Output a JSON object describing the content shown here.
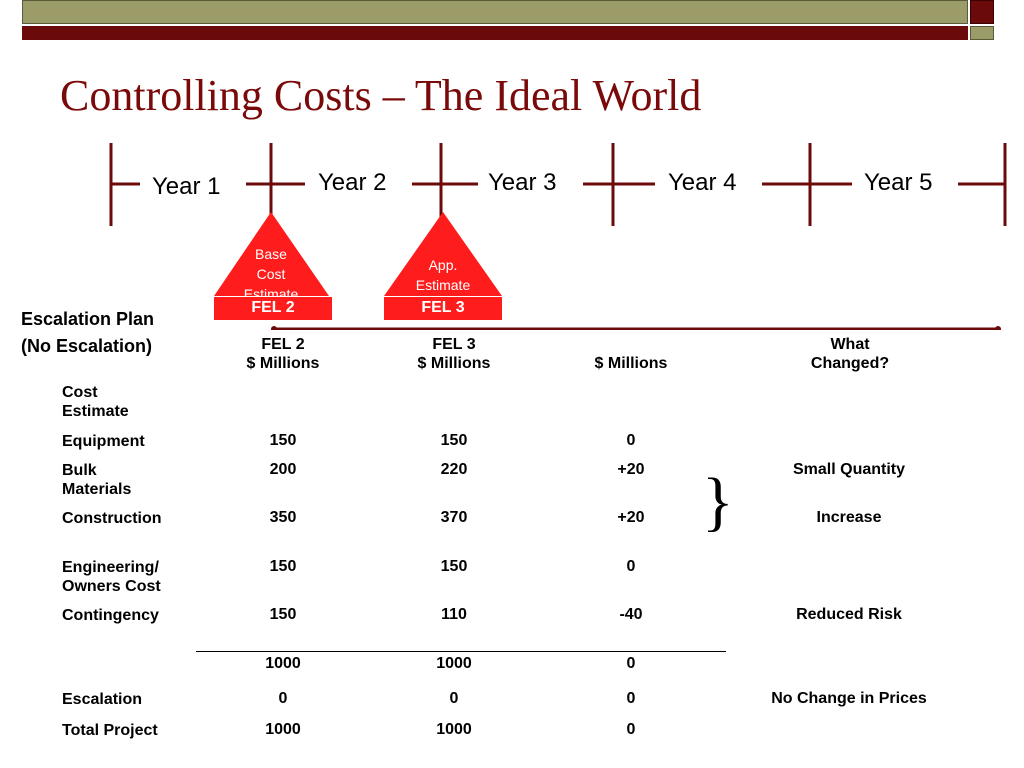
{
  "title": "Controlling Costs – The Ideal World",
  "timeline": {
    "years": [
      "Year 1",
      "Year 2",
      "Year 3",
      "Year 4",
      "Year 5"
    ]
  },
  "milestones": [
    {
      "label_lines": [
        "Base",
        "Cost",
        "Estimate"
      ],
      "fel": "FEL 2"
    },
    {
      "label_lines": [
        "App.",
        "Estimate"
      ],
      "fel": "FEL 3"
    }
  ],
  "escalation_plan": {
    "line1": "Escalation Plan",
    "line2": "(No Escalation)"
  },
  "columns": {
    "fel2": {
      "line1": "FEL 2",
      "line2": "$ Millions"
    },
    "fel3": {
      "line1": "FEL 3",
      "line2": "$ Millions"
    },
    "diff": {
      "line1": "",
      "line2": "$ Millions"
    },
    "changed": {
      "line1": "What",
      "line2": "Changed?"
    }
  },
  "section_label": {
    "line1": "Cost",
    "line2": "Estimate"
  },
  "rows": [
    {
      "label": "Equipment",
      "fel2": "150",
      "fel3": "150",
      "diff": "0",
      "changed": ""
    },
    {
      "label": "Bulk Materials",
      "fel2": "200",
      "fel3": "220",
      "diff": "+20",
      "changed": "Small Quantity"
    },
    {
      "label": "Construction",
      "fel2": "350",
      "fel3": "370",
      "diff": "+20",
      "changed": "Increase"
    },
    {
      "label": "Engineering/ Owners Cost",
      "fel2": "150",
      "fel3": "150",
      "diff": "0",
      "changed": ""
    },
    {
      "label": "Contingency",
      "fel2": "150",
      "fel3": "110",
      "diff": "-40",
      "changed": "Reduced Risk"
    }
  ],
  "subtotal": {
    "fel2": "1000",
    "fel3": "1000",
    "diff": "0"
  },
  "escalation": {
    "label": "Escalation",
    "fel2": "0",
    "fel3": "0",
    "diff": "0",
    "changed": "No Change in Prices"
  },
  "total": {
    "label": "Total Project",
    "fel2": "1000",
    "fel3": "1000",
    "diff": "0"
  },
  "brace": "}",
  "colors": {
    "title": "#7a0a0a",
    "accent_red": "#ff1c1c",
    "olive": "#9c9c68",
    "maroon": "#6b0a0a",
    "timeline": "#6b0a0a"
  }
}
